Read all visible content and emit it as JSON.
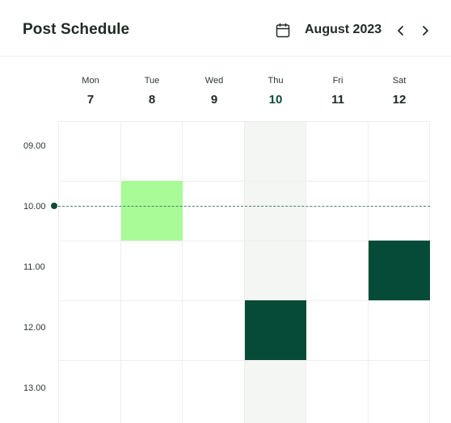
{
  "header": {
    "title": "Post Schedule",
    "month": "August 2023"
  },
  "days": [
    {
      "name": "Mon",
      "num": "7"
    },
    {
      "name": "Tue",
      "num": "8"
    },
    {
      "name": "Wed",
      "num": "9"
    },
    {
      "name": "Thu",
      "num": "10",
      "today": true
    },
    {
      "name": "Fri",
      "num": "11"
    },
    {
      "name": "Sat",
      "num": "12"
    }
  ],
  "times": [
    "09.00",
    "10.00",
    "11.00",
    "12.00",
    "13.00"
  ],
  "events": [
    {
      "day": "Tue",
      "start": "10.00",
      "end": "11.00",
      "color": "#a9fb98"
    },
    {
      "day": "Sat",
      "start": "11.00",
      "end": "12.00",
      "color": "#064b37"
    },
    {
      "day": "Thu",
      "start": "12.00",
      "end": "13.00",
      "color": "#064b37"
    }
  ],
  "colors": {
    "accent_dark": "#064b37",
    "accent_light": "#a9fb98",
    "today_column": "#f3f6f3"
  },
  "icons": {
    "calendar": "calendar-icon",
    "prev": "chevron-left-icon",
    "next": "chevron-right-icon"
  }
}
